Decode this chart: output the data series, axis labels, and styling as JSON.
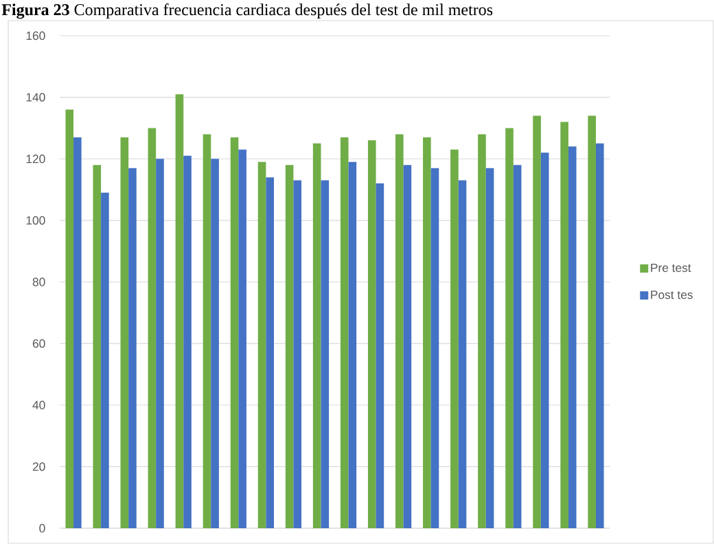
{
  "chart_data": {
    "type": "bar",
    "title": "**Figura 23** Comparativa frecuencia cardiaca después del test de mil metros",
    "categories": [
      null,
      null,
      null,
      null,
      null,
      null,
      null,
      null,
      null,
      null,
      null,
      null,
      null,
      null,
      null,
      null,
      null,
      null,
      null,
      null
    ],
    "series": [
      {
        "name": "Pre test",
        "color": "#70ad47",
        "values": [
          136,
          118,
          127,
          130,
          141,
          128,
          127,
          119,
          118,
          125,
          127,
          126,
          128,
          127,
          123,
          128,
          130,
          134,
          132,
          134
        ]
      },
      {
        "name": "Post tes",
        "color": "#4472c4",
        "values": [
          127,
          109,
          117,
          120,
          121,
          120,
          123,
          114,
          113,
          113,
          119,
          112,
          118,
          117,
          113,
          117,
          118,
          122,
          124,
          125
        ]
      }
    ],
    "ylim": [
      0,
      160
    ],
    "yticks": [
      0,
      20,
      40,
      60,
      80,
      100,
      120,
      140,
      160
    ],
    "grid": "y",
    "legend": "right"
  }
}
